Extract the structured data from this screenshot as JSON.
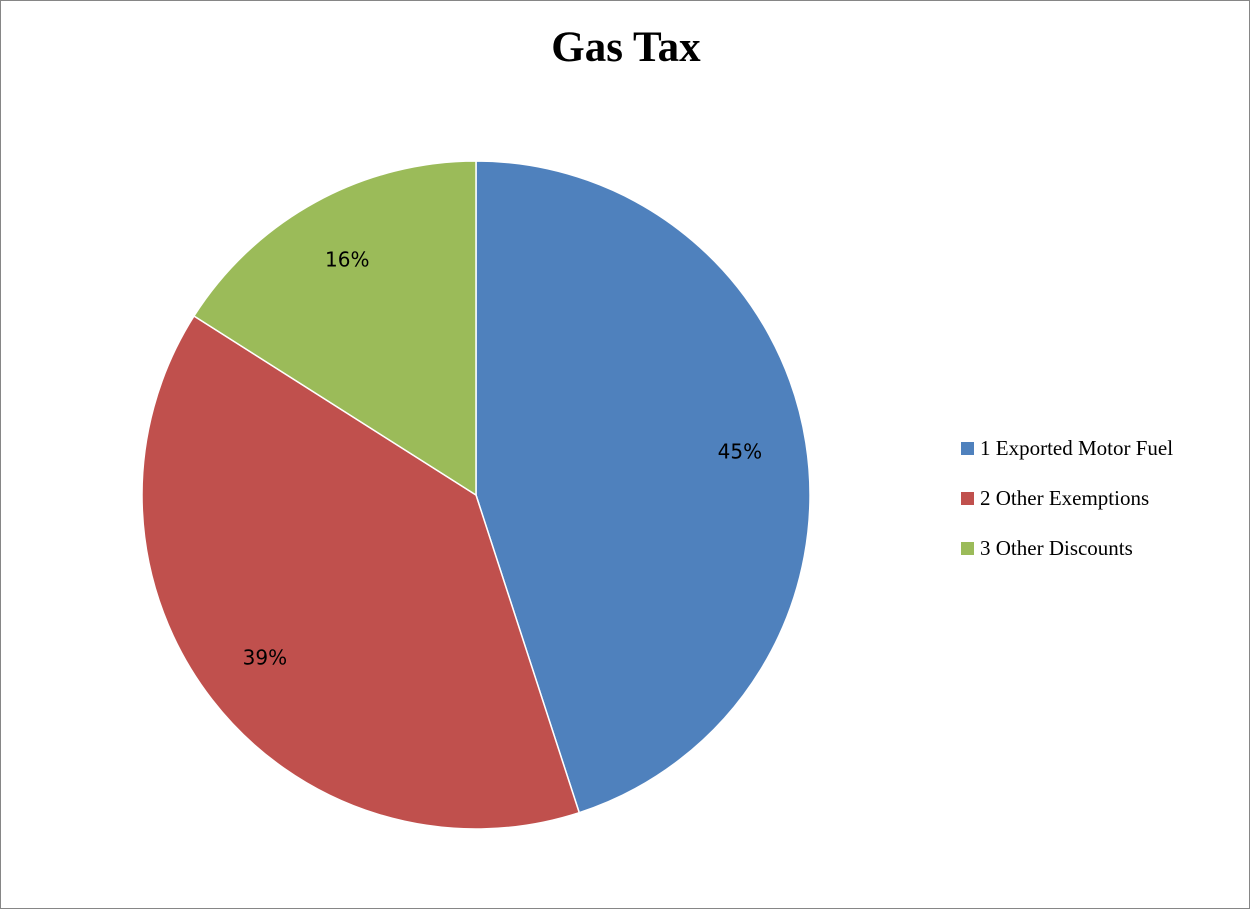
{
  "chart_data": {
    "type": "pie",
    "title": "Gas Tax",
    "categories": [
      "1 Exported Motor Fuel",
      "2 Other Exemptions",
      "3 Other Discounts"
    ],
    "values": [
      45,
      39,
      16
    ],
    "labels": [
      "45%",
      "39%",
      "16%"
    ],
    "colors": [
      "#4F81BD",
      "#C0504D",
      "#9BBB59"
    ],
    "start_angle": "12 o'clock",
    "direction": "clockwise",
    "legend_position": "right"
  },
  "legend": {
    "items": [
      {
        "label": "1 Exported Motor Fuel",
        "color": "#4F81BD"
      },
      {
        "label": "2 Other Exemptions",
        "color": "#C0504D"
      },
      {
        "label": "3 Other Discounts",
        "color": "#9BBB59"
      }
    ]
  }
}
